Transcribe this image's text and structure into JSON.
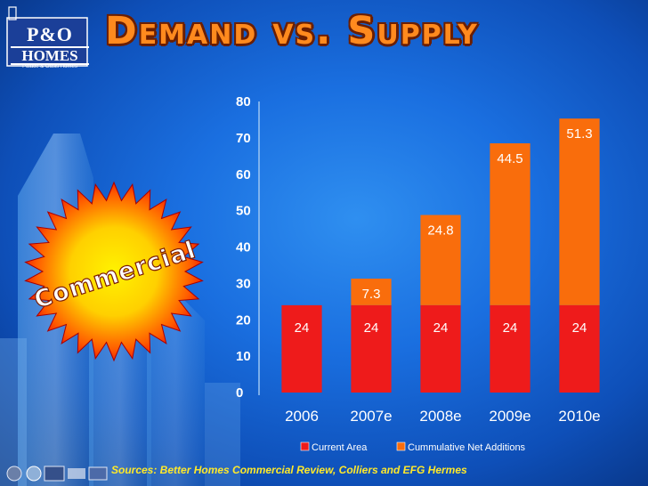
{
  "logo": {
    "title": "P&O",
    "subtitle": "HOMES",
    "tagline": "Palace & Oasis Homes"
  },
  "slide_title": "Demand vs. Supply",
  "badge_text": "Commercial",
  "source": "Sources: Better Homes Commercial Review, Colliers and EFG Hermes",
  "colors": {
    "current_area": "#ee1b1b",
    "cumulative_net_additions": "#f96d0c",
    "title": "#ff8a1e",
    "source_text": "#ffe92a",
    "axis_text": "#ffffff"
  },
  "chart_data": {
    "type": "bar",
    "stacked": true,
    "categories": [
      "2006",
      "2007e",
      "2008e",
      "2009e",
      "2010e"
    ],
    "series": [
      {
        "name": "Current Area",
        "values": [
          24,
          24,
          24,
          24,
          24
        ],
        "labels": [
          "24",
          "24",
          "24",
          "24",
          "24"
        ]
      },
      {
        "name": "Cummulative Net Additions",
        "values": [
          0,
          7.3,
          24.8,
          44.5,
          51.3
        ],
        "labels": [
          "",
          "7.3",
          "24.8",
          "44.5",
          "51.3"
        ]
      }
    ],
    "yticks": [
      "0",
      "10",
      "20",
      "30",
      "40",
      "50",
      "60",
      "70",
      "80"
    ],
    "ylim": [
      0,
      80
    ],
    "grid": false,
    "legend_position": "bottom"
  }
}
